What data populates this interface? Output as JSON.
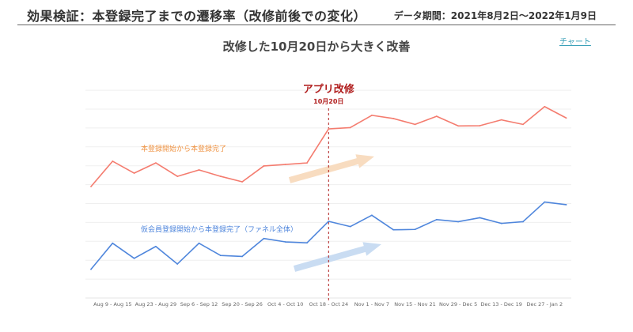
{
  "header": {
    "title": "効果検証：本登録完了までの遷移率（改修前後での変化）",
    "date_range": "データ期間：2021年8月2日〜2022年1月9日"
  },
  "subtitle": "改修した10月20日から大きく改善",
  "chart_link": "チャート",
  "chart_data": {
    "type": "line",
    "title": "",
    "xlabel": "",
    "ylabel": "",
    "grid": true,
    "y_axis_labels_shown": false,
    "ylim": [
      0,
      11
    ],
    "x_tick_labels": [
      "Aug 9 - Aug 15",
      "Aug 23 - Aug 29",
      "Sep 6 - Sep 12",
      "Sep 20 - Sep 26",
      "Oct 4 - Oct 10",
      "Oct 18 - Oct 24",
      "Nov 1 - Nov 7",
      "Nov 15 - Nov 21",
      "Nov 29 - Dec 5",
      "Dec 13 - Dec 19",
      "Dec 27 - Jan 2"
    ],
    "series": [
      {
        "name": "本登録開始から本登録完了",
        "color": "#f47c6f",
        "label_color": "#ef9445",
        "values": [
          5.9,
          7.24,
          6.61,
          7.15,
          6.44,
          6.78,
          6.44,
          6.15,
          6.99,
          7.07,
          7.15,
          8.95,
          9.02,
          9.67,
          9.5,
          9.19,
          9.62,
          9.11,
          9.12,
          9.43,
          9.19,
          10.13,
          9.53
        ]
      },
      {
        "name": "仮会員登録開始から本登録完了（ファネル全体）",
        "color": "#4f86dc",
        "label_color": "#4f86dc",
        "values": [
          1.52,
          2.9,
          2.1,
          2.73,
          1.8,
          2.9,
          2.25,
          2.2,
          3.15,
          2.97,
          2.92,
          4.06,
          3.78,
          4.38,
          3.61,
          3.63,
          4.15,
          4.04,
          4.25,
          3.95,
          4.04,
          5.08,
          4.94
        ]
      }
    ],
    "annotation": {
      "label": "アプリ改修",
      "sublabel": "10月20日",
      "index": 11,
      "color": "#b01c1c"
    },
    "arrow_colors": [
      "#f8dcc0",
      "#c9dcf2"
    ]
  }
}
